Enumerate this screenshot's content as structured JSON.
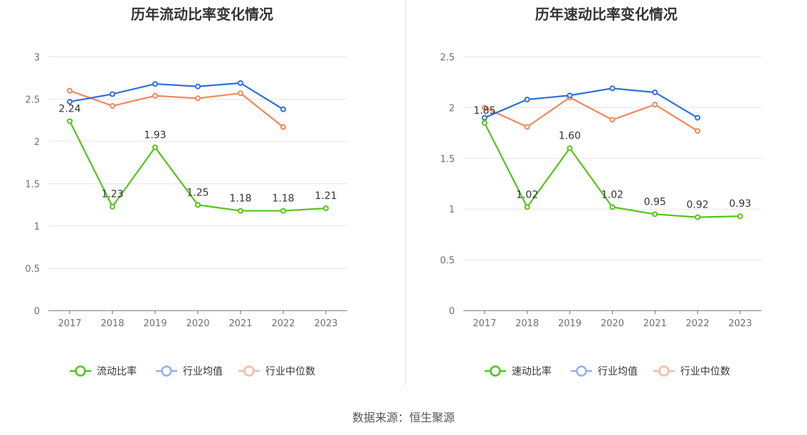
{
  "source": "数据来源：恒生聚源",
  "colors": {
    "green": "#52c41a",
    "blue": "#2f6fdb",
    "orange": "#f2875a",
    "legend_blue": "#8fb0ef",
    "legend_orange": "#f7b9a4",
    "grid": "#e6e6e6",
    "axis": "#6e7079"
  },
  "chart_data": [
    {
      "type": "line",
      "title": "历年流动比率变化情况",
      "categories": [
        "2017",
        "2018",
        "2019",
        "2020",
        "2021",
        "2022",
        "2023"
      ],
      "ylim": [
        0,
        3
      ],
      "yticks": [
        "0",
        "0.5",
        "1",
        "1.5",
        "2",
        "2.5",
        "3"
      ],
      "grid": true,
      "legend_position": "bottom",
      "series": [
        {
          "name": "流动比率",
          "color": "#52c41a",
          "values": [
            2.24,
            1.23,
            1.93,
            1.25,
            1.18,
            1.18,
            1.21
          ],
          "labels": [
            "2.24",
            "1.23",
            "1.93",
            "1.25",
            "1.18",
            "1.18",
            "1.21"
          ]
        },
        {
          "name": "行业均值",
          "color": "#2f6fdb",
          "values": [
            2.47,
            2.56,
            2.68,
            2.65,
            2.69,
            2.38,
            null
          ]
        },
        {
          "name": "行业中位数",
          "color": "#f2875a",
          "values": [
            2.6,
            2.42,
            2.54,
            2.51,
            2.57,
            2.17,
            null
          ]
        }
      ]
    },
    {
      "type": "line",
      "title": "历年速动比率变化情况",
      "categories": [
        "2017",
        "2018",
        "2019",
        "2020",
        "2021",
        "2022",
        "2023"
      ],
      "ylim": [
        0,
        2.5
      ],
      "yticks": [
        "0",
        "0.5",
        "1",
        "1.5",
        "2",
        "2.5"
      ],
      "grid": true,
      "legend_position": "bottom",
      "series": [
        {
          "name": "速动比率",
          "color": "#52c41a",
          "values": [
            1.85,
            1.02,
            1.6,
            1.02,
            0.95,
            0.92,
            0.93
          ],
          "labels": [
            "1.85",
            "1.02",
            "1.60",
            "1.02",
            "0.95",
            "0.92",
            "0.93"
          ]
        },
        {
          "name": "行业均值",
          "color": "#2f6fdb",
          "values": [
            1.9,
            2.08,
            2.12,
            2.19,
            2.15,
            1.9,
            null
          ]
        },
        {
          "name": "行业中位数",
          "color": "#f2875a",
          "values": [
            2.0,
            1.81,
            2.1,
            1.88,
            2.03,
            1.77,
            null
          ]
        }
      ]
    }
  ]
}
